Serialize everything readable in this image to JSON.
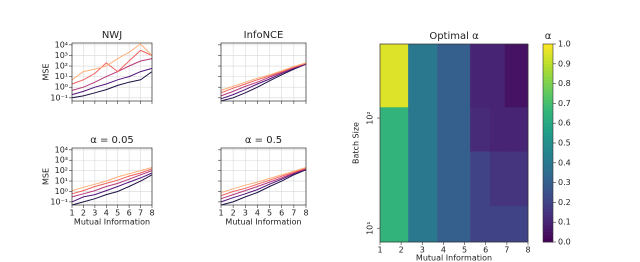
{
  "chart_data": [
    {
      "type": "line",
      "title": "NWJ",
      "ylabel": "MSE",
      "log_y": true,
      "grid": true,
      "xticklabels": false,
      "yticklabels": true,
      "x": [
        1,
        2,
        3,
        4,
        5,
        6,
        7,
        8
      ],
      "xlim": [
        1,
        8
      ],
      "xticks": [
        1,
        2,
        3,
        4,
        5,
        6,
        7,
        8
      ],
      "ylim": [
        0.05,
        15000
      ],
      "yticks": [
        {
          "value": 0.1,
          "label": "10⁻¹"
        },
        {
          "value": 1,
          "label": "10⁰"
        },
        {
          "value": 10,
          "label": "10¹"
        },
        {
          "value": 100,
          "label": "10²"
        },
        {
          "value": 1000,
          "label": "10³"
        },
        {
          "value": 10000,
          "label": "10⁴"
        }
      ],
      "series": [
        {
          "color": "#1c1044",
          "values": [
            0.1,
            0.15,
            0.3,
            0.6,
            1.5,
            3,
            5,
            30
          ]
        },
        {
          "color": "#51127c",
          "values": [
            0.2,
            0.4,
            1,
            2,
            5,
            10,
            30,
            60
          ]
        },
        {
          "color": "#b73779",
          "values": [
            0.5,
            1,
            3,
            10,
            30,
            100,
            300,
            500
          ]
        },
        {
          "color": "#f1605d",
          "values": [
            2,
            5,
            20,
            200,
            30,
            300,
            3000,
            1000
          ]
        },
        {
          "color": "#feb078",
          "values": [
            5,
            30,
            50,
            100,
            500,
            2000,
            12000,
            1000
          ]
        }
      ]
    },
    {
      "type": "line",
      "title": "InfoNCE",
      "log_y": true,
      "grid": true,
      "xticklabels": false,
      "yticklabels": false,
      "x": [
        1,
        2,
        3,
        4,
        5,
        6,
        7,
        8
      ],
      "xlim": [
        1,
        8
      ],
      "xticks": [
        1,
        2,
        3,
        4,
        5,
        6,
        7,
        8
      ],
      "ylim": [
        0.05,
        15000
      ],
      "yticks": [
        {
          "value": 0.1,
          "label": "10⁻¹"
        },
        {
          "value": 1,
          "label": "10⁰"
        },
        {
          "value": 10,
          "label": "10¹"
        },
        {
          "value": 100,
          "label": "10²"
        },
        {
          "value": 1000,
          "label": "10³"
        },
        {
          "value": 10000,
          "label": "10⁴"
        }
      ],
      "series": [
        {
          "color": "#1c1044",
          "values": [
            0.05,
            0.1,
            0.3,
            1,
            4,
            15,
            50,
            150
          ]
        },
        {
          "color": "#51127c",
          "values": [
            0.08,
            0.2,
            0.6,
            2,
            6,
            20,
            60,
            160
          ]
        },
        {
          "color": "#b73779",
          "values": [
            0.15,
            0.4,
            1.2,
            3,
            9,
            25,
            70,
            170
          ]
        },
        {
          "color": "#f1605d",
          "values": [
            0.3,
            0.8,
            2,
            5,
            12,
            30,
            80,
            180
          ]
        },
        {
          "color": "#feb078",
          "values": [
            0.5,
            1.2,
            3,
            7,
            15,
            35,
            90,
            200
          ]
        }
      ]
    },
    {
      "type": "line",
      "title": "α = 0.05",
      "ylabel": "MSE",
      "xlabel": "Mutual Information",
      "log_y": true,
      "grid": true,
      "xticklabels": true,
      "yticklabels": true,
      "x": [
        1,
        2,
        3,
        4,
        5,
        6,
        7,
        8
      ],
      "xlim": [
        1,
        8
      ],
      "xticks": [
        1,
        2,
        3,
        4,
        5,
        6,
        7,
        8
      ],
      "ylim": [
        0.05,
        15000
      ],
      "yticks": [
        {
          "value": 0.1,
          "label": "10⁻¹"
        },
        {
          "value": 1,
          "label": "10⁰"
        },
        {
          "value": 10,
          "label": "10¹"
        },
        {
          "value": 100,
          "label": "10²"
        },
        {
          "value": 1000,
          "label": "10³"
        },
        {
          "value": 10000,
          "label": "10⁴"
        }
      ],
      "series": [
        {
          "color": "#1c1044",
          "values": [
            0.05,
            0.1,
            0.2,
            0.5,
            1,
            3,
            10,
            40
          ]
        },
        {
          "color": "#51127c",
          "values": [
            0.1,
            0.3,
            0.5,
            1.2,
            3,
            8,
            20,
            60
          ]
        },
        {
          "color": "#b73779",
          "values": [
            0.3,
            0.6,
            1.2,
            3,
            6,
            15,
            40,
            100
          ]
        },
        {
          "color": "#f1605d",
          "values": [
            0.6,
            1.2,
            3,
            6,
            12,
            30,
            60,
            150
          ]
        },
        {
          "color": "#feb078",
          "values": [
            1.2,
            2.5,
            5,
            10,
            25,
            50,
            100,
            200
          ]
        }
      ]
    },
    {
      "type": "line",
      "title": "α = 0.5",
      "xlabel": "Mutual Information",
      "log_y": true,
      "grid": true,
      "xticklabels": true,
      "yticklabels": false,
      "x": [
        1,
        2,
        3,
        4,
        5,
        6,
        7,
        8
      ],
      "xlim": [
        1,
        8
      ],
      "xticks": [
        1,
        2,
        3,
        4,
        5,
        6,
        7,
        8
      ],
      "ylim": [
        0.05,
        15000
      ],
      "yticks": [
        {
          "value": 0.1,
          "label": "10⁻¹"
        },
        {
          "value": 1,
          "label": "10⁰"
        },
        {
          "value": 10,
          "label": "10¹"
        },
        {
          "value": 100,
          "label": "10²"
        },
        {
          "value": 1000,
          "label": "10³"
        },
        {
          "value": 10000,
          "label": "10⁴"
        }
      ],
      "series": [
        {
          "color": "#1c1044",
          "values": [
            0.05,
            0.1,
            0.3,
            0.8,
            3,
            10,
            40,
            120
          ]
        },
        {
          "color": "#51127c",
          "values": [
            0.1,
            0.25,
            0.6,
            1.5,
            5,
            15,
            50,
            140
          ]
        },
        {
          "color": "#b73779",
          "values": [
            0.2,
            0.5,
            1.2,
            3,
            8,
            20,
            60,
            150
          ]
        },
        {
          "color": "#f1605d",
          "values": [
            0.4,
            1,
            2,
            5,
            12,
            30,
            70,
            170
          ]
        },
        {
          "color": "#feb078",
          "values": [
            0.8,
            1.8,
            4,
            8,
            18,
            40,
            90,
            200
          ]
        }
      ]
    },
    {
      "type": "heatmap",
      "title": "Optimal α",
      "xlabel": "Mutual Information",
      "ylabel": "Batch Size",
      "colormap": "viridis",
      "log_y": true,
      "x_edges": [
        1,
        2.33,
        3.7,
        5.26,
        6.2,
        6.9,
        8
      ],
      "y_edges": [
        7.5,
        16,
        50,
        126,
        470
      ],
      "xlim": [
        1,
        8
      ],
      "xticks": [
        1,
        2,
        3,
        4,
        5,
        6,
        7,
        8
      ],
      "ylim": [
        7.5,
        470
      ],
      "yticks": [
        {
          "value": 10,
          "label": "10¹"
        },
        {
          "value": 100,
          "label": "10²"
        }
      ],
      "values": [
        [
          0.65,
          0.4,
          0.3,
          0.2,
          0.2,
          0.2
        ],
        [
          0.65,
          0.4,
          0.3,
          0.2,
          0.15,
          0.15
        ],
        [
          0.65,
          0.4,
          0.3,
          0.12,
          0.1,
          0.1
        ],
        [
          0.95,
          0.4,
          0.3,
          0.1,
          0.1,
          0.05
        ]
      ],
      "colorbar_label": "α",
      "clim": [
        0,
        1
      ],
      "cticks": [
        {
          "value": 0,
          "label": "0.0"
        },
        {
          "value": 0.1,
          "label": "0.1"
        },
        {
          "value": 0.2,
          "label": "0.2"
        },
        {
          "value": 0.3,
          "label": "0.3"
        },
        {
          "value": 0.4,
          "label": "0.4"
        },
        {
          "value": 0.5,
          "label": "0.5"
        },
        {
          "value": 0.6,
          "label": "0.6"
        },
        {
          "value": 0.7,
          "label": "0.7"
        },
        {
          "value": 0.8,
          "label": "0.8"
        },
        {
          "value": 0.9,
          "label": "0.9"
        },
        {
          "value": 1,
          "label": "1.0"
        }
      ]
    }
  ]
}
